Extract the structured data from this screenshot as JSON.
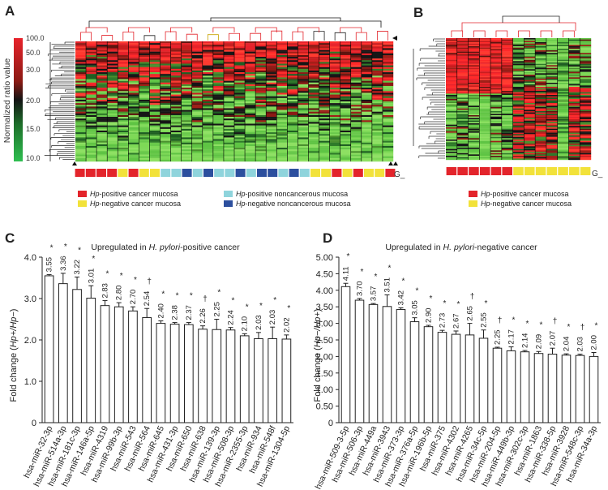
{
  "panels": {
    "a": "A",
    "b": "B",
    "c": "C",
    "d": "D"
  },
  "heatmap_a": {
    "scale_label": "Normalized ratio value",
    "scale_ticks": [
      "100.0",
      "50.0",
      "30.0",
      "20.0",
      "15.0",
      "10.0"
    ],
    "group_label": "G_",
    "groups": [
      "pc",
      "pc",
      "pc",
      "pc",
      "nc",
      "pc",
      "nc",
      "nc",
      "pn",
      "pn",
      "nn",
      "pn",
      "nn",
      "pn",
      "pn",
      "nn",
      "pn",
      "nn",
      "nn",
      "pn",
      "nn",
      "pn",
      "nc",
      "nc",
      "pc",
      "nc",
      "pc",
      "nc",
      "nc",
      "pc"
    ]
  },
  "heatmap_b": {
    "group_label": "G_",
    "groups": [
      "pc",
      "pc",
      "pc",
      "pc",
      "pc",
      "pc",
      "nc",
      "nc",
      "nc",
      "nc",
      "nc",
      "nc",
      "nc"
    ]
  },
  "legend_a": [
    {
      "hp": "Hp",
      "text": "-positive cancer mucosa",
      "color": "#e3242b"
    },
    {
      "hp": "Hp",
      "text": "-negative cancer mucosa",
      "color": "#f2e23a"
    },
    {
      "hp": "Hp",
      "text": "-positive noncancerous mucosa",
      "color": "#8fd4dc"
    },
    {
      "hp": "Hp",
      "text": "-negative noncancerous mucosa",
      "color": "#2c4f9e"
    }
  ],
  "legend_b": [
    {
      "hp": "Hp",
      "text": "-positive cancer mucosa",
      "color": "#e3242b"
    },
    {
      "hp": "Hp",
      "text": "-negative cancer mucosa",
      "color": "#f2e23a"
    }
  ],
  "chart_data": [
    {
      "type": "bar",
      "title_pre": "Upregulated in ",
      "title_em": "H. pylori",
      "title_post": "-positive cancer",
      "ylabel_pre": "Fold change (",
      "ylabel_em": "Hp+/Hp−",
      "ylabel_post": ")",
      "ylim": [
        0,
        4.0
      ],
      "yticks": [
        "0",
        "1.0",
        "2.0",
        "3.0",
        "4.0"
      ],
      "ytick_values": [
        0,
        1,
        2,
        3,
        4
      ],
      "categories": [
        "hsa-miR-32-3p",
        "hsa-miR-514a-3p",
        "hsa-miR-181c-3p",
        "hsa-miR-146a-5p",
        "hsa-miR-4319",
        "hsa-miR-99b-3p",
        "hsa-miR-543",
        "hsa-miR-564",
        "hsa-miR-645",
        "hsa-miR-431-3p",
        "hsa-miR-650",
        "hsa-miR-638",
        "hsa-miR-139-3p",
        "hsa-miR-508-3p",
        "hsa-miR-2355-3p",
        "hsa-miR-934",
        "hsa-miR-548f",
        "hsa-miR-1304-5p"
      ],
      "values": [
        3.55,
        3.36,
        3.22,
        3.01,
        2.83,
        2.8,
        2.7,
        2.54,
        2.4,
        2.38,
        2.37,
        2.26,
        2.25,
        2.24,
        2.1,
        2.03,
        2.03,
        2.02
      ],
      "errors": [
        0.03,
        0.25,
        0.3,
        0.3,
        0.12,
        0.1,
        0.1,
        0.22,
        0.06,
        0.04,
        0.05,
        0.08,
        0.25,
        0.06,
        0.05,
        0.15,
        0.28,
        0.1
      ],
      "labels": [
        "3.55",
        "3.36",
        "3.22",
        "3.01",
        "2.83",
        "2.80",
        "2.70",
        "2.54",
        "2.40",
        "2.38",
        "2.37",
        "2.26",
        "2.25",
        "2.24",
        "2.10",
        "2.03",
        "2.03",
        "2.02"
      ],
      "marks": [
        "*",
        "*",
        "*",
        "*",
        "*",
        "*",
        "*",
        "†",
        "*",
        "*",
        "*",
        "†",
        "*",
        "*",
        "*",
        "*",
        "*",
        "*"
      ]
    },
    {
      "type": "bar",
      "title_pre": "Upregulated in ",
      "title_em": "H. pylori",
      "title_post": "-negative cancer",
      "ylabel_pre": "Fold change (",
      "ylabel_em": "Hp−/Hp+",
      "ylabel_post": ")",
      "ylim": [
        0,
        5.0
      ],
      "yticks": [
        "0",
        "0.50",
        "1.00",
        "1.50",
        "2.00",
        "2.50",
        "3.00",
        "3.50",
        "4.00",
        "4.50",
        "5.00"
      ],
      "ytick_values": [
        0,
        0.5,
        1,
        1.5,
        2,
        2.5,
        3,
        3.5,
        4,
        4.5,
        5
      ],
      "categories": [
        "hsa-miR-509-3-5p",
        "hsa-miR-506-3p",
        "hsa-miR-449a",
        "hsa-miR-3943",
        "hsa-miR-373-3p",
        "hsa-miR-376a-5p",
        "hsa-miR-196b-5p",
        "hsa-miR-375",
        "hsa-miR-4302",
        "hsa-miR-4265",
        "hsa-miR-34c-5p",
        "hsa-miR-204-5p",
        "hsa-miR-449b-3p",
        "hsa-miR-302c-3p",
        "hsa-miR-1863",
        "hsa-miR-338-5p",
        "hsa-miR-3928",
        "hsa-miR-548c-3p",
        "hsa-miR-34a-3p"
      ],
      "values": [
        4.11,
        3.7,
        3.57,
        3.51,
        3.42,
        3.05,
        2.9,
        2.73,
        2.67,
        2.65,
        2.55,
        2.25,
        2.17,
        2.14,
        2.09,
        2.07,
        2.04,
        2.03,
        2.0
      ],
      "errors": [
        0.1,
        0.05,
        0.03,
        0.35,
        0.05,
        0.12,
        0.04,
        0.06,
        0.1,
        0.35,
        0.25,
        0.03,
        0.12,
        0.04,
        0.06,
        0.18,
        0.04,
        0.04,
        0.12
      ],
      "labels": [
        "4.11",
        "3.70",
        "3.57",
        "3.51",
        "3.42",
        "3.05",
        "2.90",
        "2.73",
        "2.67",
        "2.65",
        "2.55",
        "2.25",
        "2.17",
        "2.14",
        "2.09",
        "2.07",
        "2.04",
        "2.03",
        "2.00"
      ],
      "marks": [
        "*",
        "*",
        "*",
        "*",
        "*",
        "*",
        "*",
        "*",
        "*",
        "†",
        "*",
        "†",
        "*",
        "*",
        "*",
        "†",
        "*",
        "†",
        "*"
      ]
    }
  ]
}
